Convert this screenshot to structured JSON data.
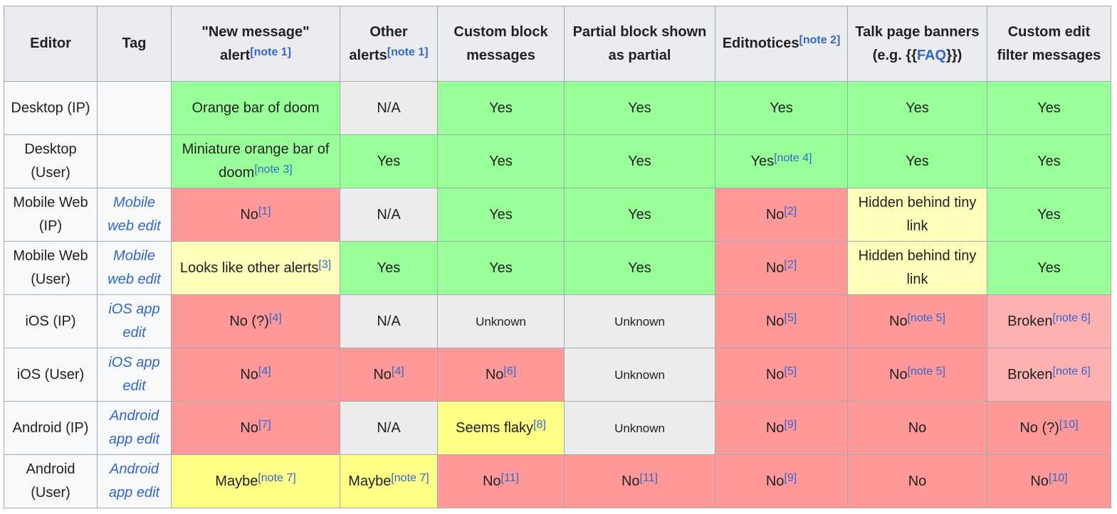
{
  "table": {
    "headers": {
      "editor": "Editor",
      "tag": "Tag",
      "new_message": "\"New message\" alert",
      "new_message_note": "[note 1]",
      "other_alerts": "Other alerts",
      "other_alerts_note": "[note 1]",
      "custom_block": "Custom block messages",
      "partial_block": "Partial block shown as partial",
      "editnotices": "Editnotices",
      "editnotices_note": "[note 2]",
      "talk_banners_prefix": "Talk page banners (e.g. {{",
      "talk_banners_link": "FAQ",
      "talk_banners_suffix": "}})",
      "custom_filter": "Custom edit filter messages"
    },
    "rows": [
      {
        "editor": "Desktop (IP)",
        "tag": "",
        "cells": [
          {
            "text": "Orange bar of doom",
            "ref": "",
            "status": "green"
          },
          {
            "text": "N/A",
            "ref": "",
            "status": "gray"
          },
          {
            "text": "Yes",
            "ref": "",
            "status": "green"
          },
          {
            "text": "Yes",
            "ref": "",
            "status": "green"
          },
          {
            "text": "Yes",
            "ref": "",
            "status": "green"
          },
          {
            "text": "Yes",
            "ref": "",
            "status": "green"
          },
          {
            "text": "Yes",
            "ref": "",
            "status": "green"
          }
        ]
      },
      {
        "editor": "Desktop (User)",
        "tag": "",
        "cells": [
          {
            "text": "Miniature orange bar of doom",
            "ref": "[note 3]",
            "status": "green"
          },
          {
            "text": "Yes",
            "ref": "",
            "status": "green"
          },
          {
            "text": "Yes",
            "ref": "",
            "status": "green"
          },
          {
            "text": "Yes",
            "ref": "",
            "status": "green"
          },
          {
            "text": "Yes",
            "ref": "[note 4]",
            "status": "green"
          },
          {
            "text": "Yes",
            "ref": "",
            "status": "green"
          },
          {
            "text": "Yes",
            "ref": "",
            "status": "green"
          }
        ]
      },
      {
        "editor": "Mobile Web (IP)",
        "tag": "Mobile web edit",
        "cells": [
          {
            "text": "No",
            "ref": "[1]",
            "status": "red"
          },
          {
            "text": "N/A",
            "ref": "",
            "status": "gray"
          },
          {
            "text": "Yes",
            "ref": "",
            "status": "green"
          },
          {
            "text": "Yes",
            "ref": "",
            "status": "green"
          },
          {
            "text": "No",
            "ref": "[2]",
            "status": "red"
          },
          {
            "text": "Hidden behind tiny link",
            "ref": "",
            "status": "lightyellow"
          },
          {
            "text": "Yes",
            "ref": "",
            "status": "green"
          }
        ]
      },
      {
        "editor": "Mobile Web (User)",
        "tag": "Mobile web edit",
        "cells": [
          {
            "text": "Looks like other alerts",
            "ref": "[3]",
            "status": "lightyellow"
          },
          {
            "text": "Yes",
            "ref": "",
            "status": "green"
          },
          {
            "text": "Yes",
            "ref": "",
            "status": "green"
          },
          {
            "text": "Yes",
            "ref": "",
            "status": "green"
          },
          {
            "text": "No",
            "ref": "[2]",
            "status": "red"
          },
          {
            "text": "Hidden behind tiny link",
            "ref": "",
            "status": "lightyellow"
          },
          {
            "text": "Yes",
            "ref": "",
            "status": "green"
          }
        ]
      },
      {
        "editor": "iOS (IP)",
        "tag": "iOS app edit",
        "cells": [
          {
            "text": "No (?)",
            "ref": "[4]",
            "status": "red"
          },
          {
            "text": "N/A",
            "ref": "",
            "status": "gray"
          },
          {
            "text": "Unknown",
            "ref": "",
            "status": "gray-small"
          },
          {
            "text": "Unknown",
            "ref": "",
            "status": "gray-small"
          },
          {
            "text": "No",
            "ref": "[5]",
            "status": "red"
          },
          {
            "text": "No",
            "ref": "[note 5]",
            "status": "red"
          },
          {
            "text": "Broken",
            "ref": "[note 6]",
            "status": "pink"
          }
        ]
      },
      {
        "editor": "iOS (User)",
        "tag": "iOS app edit",
        "cells": [
          {
            "text": "No",
            "ref": "[4]",
            "status": "red"
          },
          {
            "text": "No",
            "ref": "[4]",
            "status": "red"
          },
          {
            "text": "No",
            "ref": "[6]",
            "status": "red"
          },
          {
            "text": "Unknown",
            "ref": "",
            "status": "gray-small"
          },
          {
            "text": "No",
            "ref": "[5]",
            "status": "red"
          },
          {
            "text": "No",
            "ref": "[note 5]",
            "status": "red"
          },
          {
            "text": "Broken",
            "ref": "[note 6]",
            "status": "pink"
          }
        ]
      },
      {
        "editor": "Android (IP)",
        "tag": "Android app edit",
        "cells": [
          {
            "text": "No",
            "ref": "[7]",
            "status": "red"
          },
          {
            "text": "N/A",
            "ref": "",
            "status": "gray"
          },
          {
            "text": "Seems flaky",
            "ref": "[8]",
            "status": "yellow"
          },
          {
            "text": "Unknown",
            "ref": "",
            "status": "gray-small"
          },
          {
            "text": "No",
            "ref": "[9]",
            "status": "red"
          },
          {
            "text": "No",
            "ref": "",
            "status": "red"
          },
          {
            "text": "No (?)",
            "ref": "[10]",
            "status": "red"
          }
        ]
      },
      {
        "editor": "Android (User)",
        "tag": "Android app edit",
        "cells": [
          {
            "text": "Maybe",
            "ref": "[note 7]",
            "status": "yellow"
          },
          {
            "text": "Maybe",
            "ref": "[note 7]",
            "status": "yellow"
          },
          {
            "text": "No",
            "ref": "[11]",
            "status": "red"
          },
          {
            "text": "No",
            "ref": "[11]",
            "status": "red"
          },
          {
            "text": "No",
            "ref": "[9]",
            "status": "red"
          },
          {
            "text": "No",
            "ref": "",
            "status": "red"
          },
          {
            "text": "No",
            "ref": "[10]",
            "status": "red"
          }
        ]
      }
    ]
  },
  "colors": {
    "green": "#99ff99",
    "red": "#ff9999",
    "lightyellow": "#ffffbb",
    "yellow": "#ffff88",
    "gray": "#ececec",
    "pink": "#ffb0b0",
    "header_bg": "#eaecf0",
    "link": "#3366cc"
  }
}
